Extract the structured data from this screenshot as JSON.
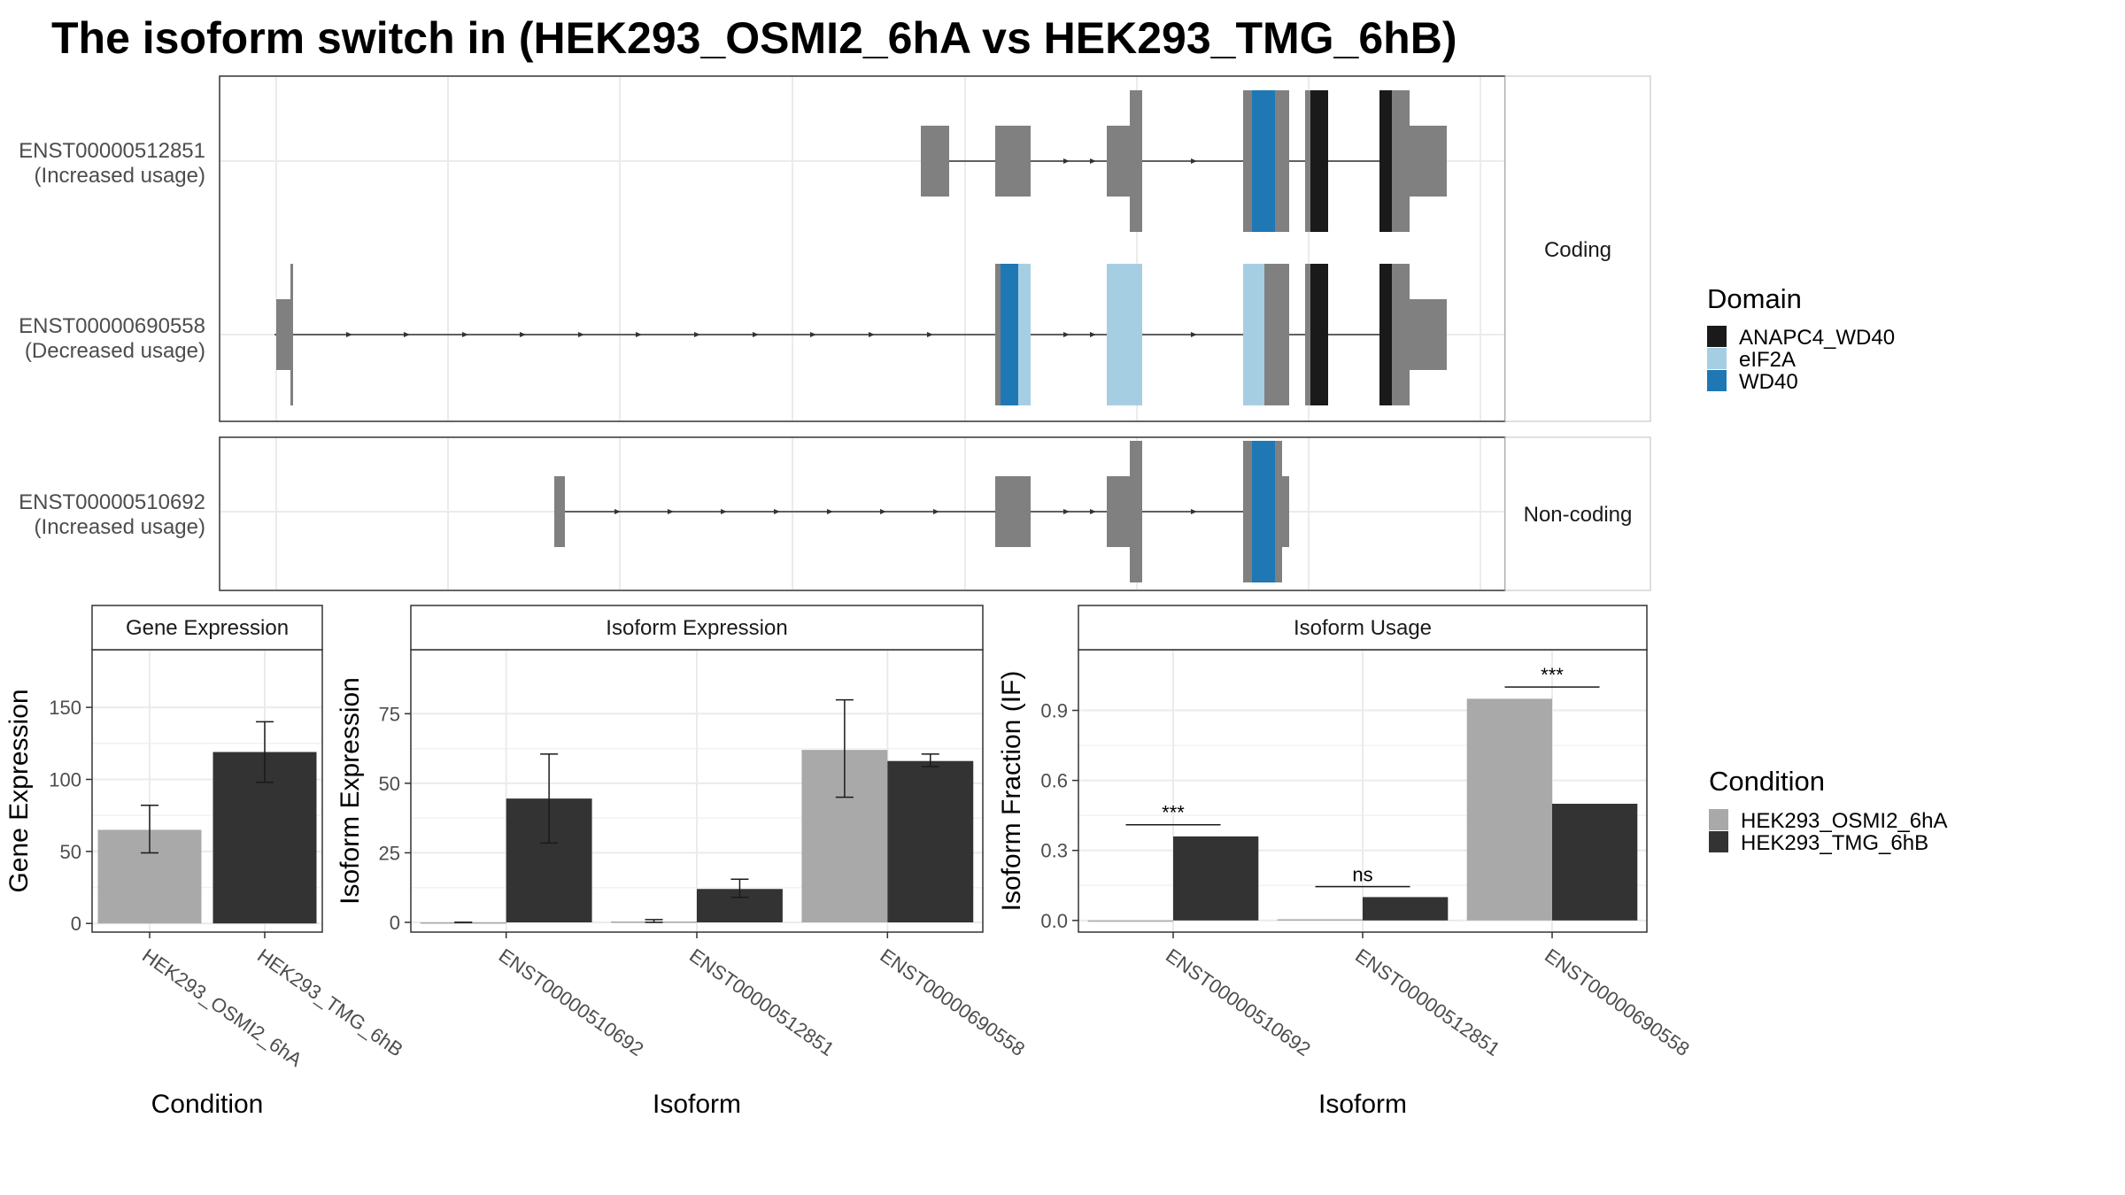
{
  "title": "The isoform switch in  (HEK293_OSMI2_6hA vs HEK293_TMG_6hB)",
  "colors": {
    "utr": "#808080",
    "ANAPC4_WD40": "#1a1a1a",
    "eIF2A": "#a6cee3",
    "WD40": "#1f78b4",
    "HEK293_OSMI2_6hA": "#a9a9a9",
    "HEK293_TMG_6hB": "#333333"
  },
  "structure": {
    "coding_label": "Coding",
    "noncoding_label": "Non-coding",
    "isoforms": [
      {
        "id": "ENST00000512851",
        "usage": "(Increased usage)",
        "panel": "Coding"
      },
      {
        "id": "ENST00000690558",
        "usage": "(Decreased usage)",
        "panel": "Coding"
      },
      {
        "id": "ENST00000510692",
        "usage": "(Increased usage)",
        "panel": "Non-coding"
      }
    ]
  },
  "legend_domain": {
    "title": "Domain",
    "items": [
      "ANAPC4_WD40",
      "eIF2A",
      "WD40"
    ]
  },
  "legend_condition": {
    "title": "Condition",
    "items": [
      "HEK293_OSMI2_6hA",
      "HEK293_TMG_6hB"
    ]
  },
  "chart_data": [
    {
      "type": "bar",
      "strip": "Gene Expression",
      "xlabel": "Condition",
      "ylabel": "Gene Expression",
      "categories": [
        "HEK293_OSMI2_6hA",
        "HEK293_TMG_6hB"
      ],
      "values": [
        65,
        119
      ],
      "err_low": [
        49,
        98
      ],
      "err_high": [
        82,
        140
      ],
      "yticks": [
        0,
        50,
        100,
        150
      ],
      "ylim": [
        -6,
        190
      ]
    },
    {
      "type": "bar",
      "strip": "Isoform Expression",
      "xlabel": "Isoform",
      "ylabel": "Isoform Expression",
      "categories": [
        "ENST00000510692",
        "ENST00000512851",
        "ENST00000690558"
      ],
      "series": [
        {
          "name": "HEK293_OSMI2_6hA",
          "values": [
            0,
            0.3,
            62
          ],
          "err_low": [
            0,
            0,
            45
          ],
          "err_high": [
            0,
            1,
            80
          ]
        },
        {
          "name": "HEK293_TMG_6hB",
          "values": [
            44.5,
            12,
            58
          ],
          "err_low": [
            28.5,
            9,
            56
          ],
          "err_high": [
            60.5,
            15.5,
            60.5
          ]
        }
      ],
      "yticks": [
        0,
        25,
        50,
        75
      ],
      "ylim": [
        -3.5,
        98
      ]
    },
    {
      "type": "bar",
      "strip": "Isoform Usage",
      "xlabel": "Isoform",
      "ylabel": "Isoform Fraction (IF)",
      "categories": [
        "ENST00000510692",
        "ENST00000512851",
        "ENST00000690558"
      ],
      "series": [
        {
          "name": "HEK293_OSMI2_6hA",
          "values": [
            0,
            0.005,
            0.95
          ]
        },
        {
          "name": "HEK293_TMG_6hB",
          "values": [
            0.36,
            0.1,
            0.5
          ]
        }
      ],
      "significance": [
        "***",
        "ns",
        "***"
      ],
      "sig_y": [
        0.41,
        0.145,
        1.0
      ],
      "yticks": [
        "0.0",
        "0.3",
        "0.6",
        "0.9"
      ],
      "ylim": [
        -0.05,
        1.16
      ]
    }
  ]
}
